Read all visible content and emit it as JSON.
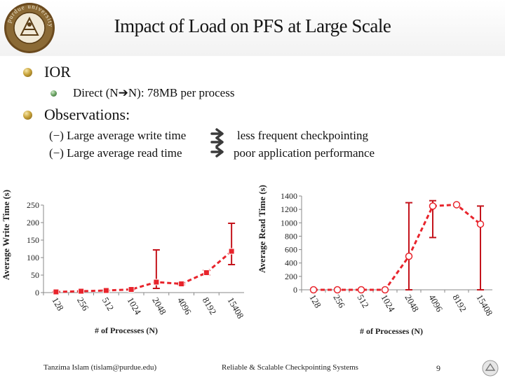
{
  "slide": {
    "title": "Impact of Load on PFS at Large Scale",
    "logo_text": "purdue university",
    "bullets": [
      {
        "label": "IOR",
        "sub": "Direct (N➔N): 78MB per process"
      },
      {
        "label": "Observations:"
      }
    ],
    "observations": [
      {
        "prefix": "(−)",
        "text": "Large average write time",
        "result": "less frequent checkpointing"
      },
      {
        "prefix": "(−)",
        "text": "Large average read time",
        "result": "poor application performance"
      }
    ],
    "footer": {
      "author": "Tanzima Islam (tislam@purdue.edu)",
      "center": "Reliable & Scalable Checkpointing Systems",
      "page": "9"
    }
  },
  "colors": {
    "series": "#e8242c",
    "error": "#c4141c",
    "axis": "#888888",
    "arrow": "#3b3b3b"
  },
  "chart_data": [
    {
      "type": "line",
      "title": "",
      "xlabel": "# of Processes (N)",
      "ylabel": "Average Write Time (s)",
      "categories": [
        "128",
        "256",
        "512",
        "1024",
        "2048",
        "4096",
        "8192",
        "15408"
      ],
      "yticks": [
        "0",
        "50",
        "100",
        "150",
        "200",
        "250"
      ],
      "ylim": [
        0,
        250
      ],
      "series": [
        {
          "name": "Average Write Time",
          "values": [
            2,
            4,
            6,
            9,
            30,
            25,
            57,
            118
          ],
          "err_low": [
            1,
            3,
            5,
            8,
            12,
            22,
            50,
            80
          ],
          "err_high": [
            3,
            5,
            7,
            10,
            122,
            28,
            64,
            198
          ]
        }
      ]
    },
    {
      "type": "line",
      "title": "",
      "xlabel": "# of Processes (N)",
      "ylabel": "Average Read Time (s)",
      "categories": [
        "128",
        "256",
        "512",
        "1024",
        "2048",
        "4096",
        "8192",
        "15408"
      ],
      "yticks": [
        "0",
        "200",
        "400",
        "600",
        "800",
        "1000",
        "1200",
        "1400"
      ],
      "ylim": [
        0,
        1400
      ],
      "series": [
        {
          "name": "Average Read Time",
          "values": [
            0,
            0,
            0,
            0,
            500,
            1250,
            1270,
            980
          ],
          "err_low": [
            0,
            0,
            0,
            0,
            0,
            780,
            1270,
            0
          ],
          "err_high": [
            0,
            0,
            0,
            0,
            1300,
            1330,
            1270,
            1250
          ]
        }
      ]
    }
  ]
}
